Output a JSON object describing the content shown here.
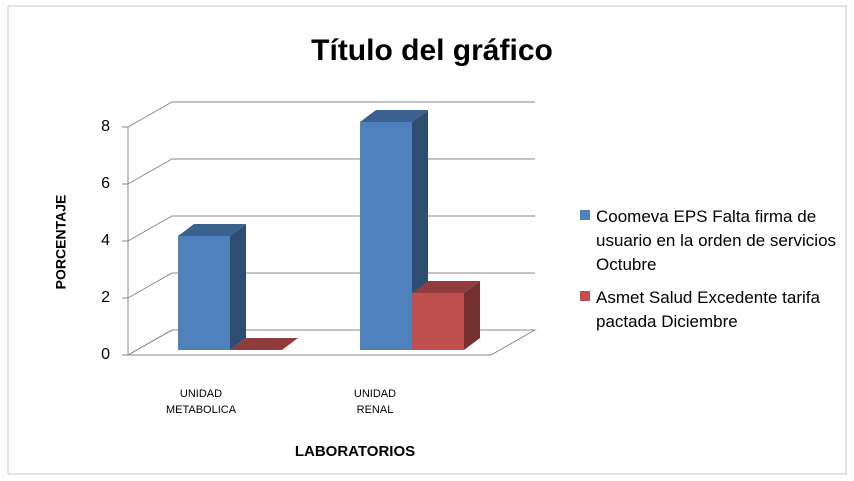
{
  "chart_data": {
    "type": "bar3d",
    "title": "Título del gráfico",
    "x_label": "LABORATORIOS",
    "y_label": "PORCENTAJE",
    "categories": [
      "UNIDAD METABOLICA",
      "UNIDAD RENAL"
    ],
    "series": [
      {
        "name": "Coomeva EPS Falta firma de usuario en la orden de servicios Octubre",
        "color": "#4f81bd",
        "values": [
          4,
          8
        ]
      },
      {
        "name": "Asmet Salud Excedente tarifa pactada Diciembre",
        "color": "#c0504d",
        "values": [
          0,
          2
        ]
      }
    ],
    "ylim": [
      0,
      8
    ],
    "yticks": [
      0,
      2,
      4,
      6,
      8
    ],
    "grid": true,
    "legend": "right"
  }
}
